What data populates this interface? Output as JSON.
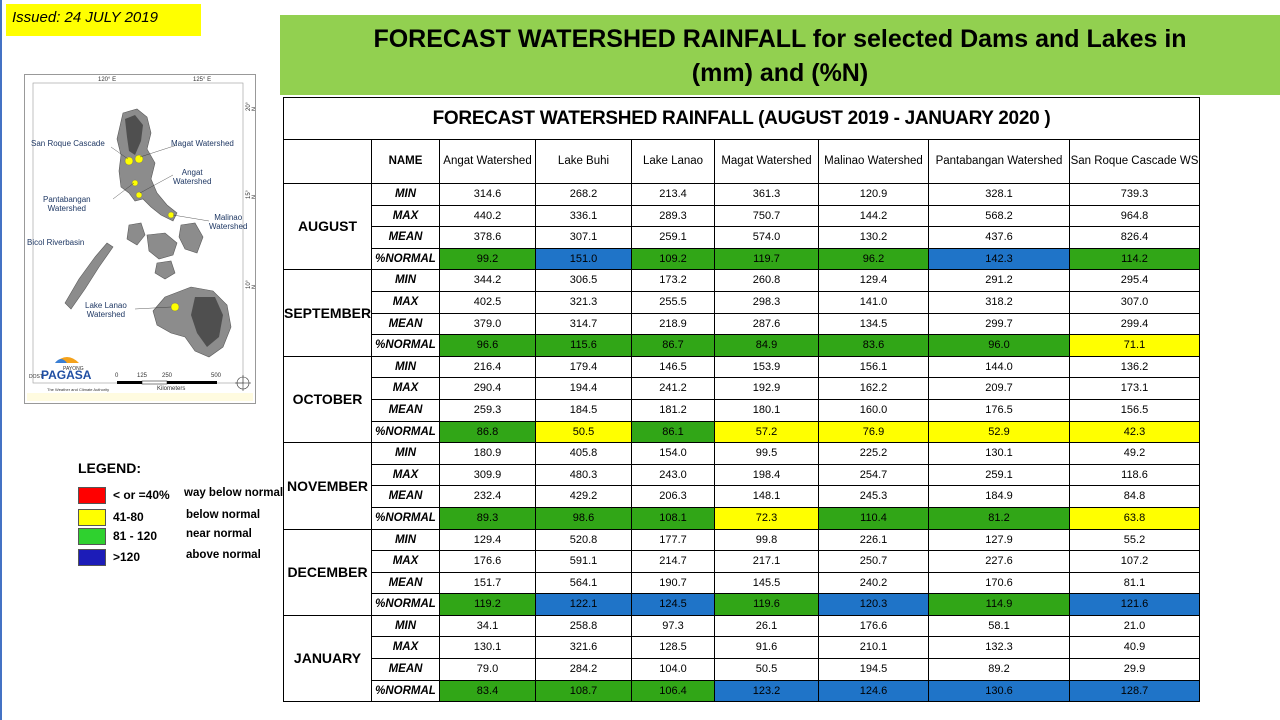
{
  "issued": "Issued: 24 JULY 2019",
  "banner": {
    "line1": "FORECAST WATERSHED RAINFALL   for selected Dams and Lakes in",
    "line2": "(mm) and (%N)"
  },
  "map": {
    "coords_top": [
      "120° E",
      "125° E"
    ],
    "coords_right": [
      "20° N",
      "15° N",
      "10° N"
    ],
    "labels": {
      "san_roque": "San Roque Cascade",
      "magat": "Magat Watershed",
      "angat": "Angat\nWatershed",
      "pantabangan": "Pantabangan\nWatershed",
      "malinao": "Malinao\nWatershed",
      "bicol": "Bicol Riverbasin",
      "lanao": "Lake Lanao\nWatershed"
    },
    "logo_small": "DOST",
    "logo_payong": "PAYONG",
    "logo_text": "PAGASA",
    "logo_tagline": "The Weather and Climate Authority",
    "scale": [
      "0",
      "125",
      "250",
      "500"
    ],
    "scale_unit": "Kilometers"
  },
  "legend": {
    "title": "LEGEND:",
    "items": [
      {
        "range": "< or =40%",
        "label": "way below normal",
        "color": "#ff0000"
      },
      {
        "range": "41-80",
        "label": "below normal",
        "color": "#ffff00"
      },
      {
        "range": "81 - 120",
        "label": "near normal",
        "color": "#2fd12f"
      },
      {
        "range": ">120",
        "label": "above normal",
        "color": "#1c1cb8"
      }
    ]
  },
  "table": {
    "title": "FORECAST WATERSHED RAINFALL (AUGUST 2019 - JANUARY 2020 )",
    "name_header": "NAME",
    "columns": [
      "Angat Watershed",
      "Lake Buhi",
      "Lake Lanao",
      "Magat Watershed",
      "Malinao Watershed",
      "Pantabangan Watershed",
      "San Roque Cascade WS"
    ],
    "stat_labels": [
      "MIN",
      "MAX",
      "MEAN",
      "%NORMAL"
    ],
    "months": [
      {
        "name": "AUGUST",
        "min": [
          "314.6",
          "268.2",
          "213.4",
          "361.3",
          "120.9",
          "328.1",
          "739.3"
        ],
        "max": [
          "440.2",
          "336.1",
          "289.3",
          "750.7",
          "144.2",
          "568.2",
          "964.8"
        ],
        "mean": [
          "378.6",
          "307.1",
          "259.1",
          "574.0",
          "130.2",
          "437.6",
          "826.4"
        ],
        "normal": [
          "99.2",
          "151.0",
          "109.2",
          "119.7",
          "96.2",
          "142.3",
          "114.2"
        ]
      },
      {
        "name": "SEPTEMBER",
        "min": [
          "344.2",
          "306.5",
          "173.2",
          "260.8",
          "129.4",
          "291.2",
          "295.4"
        ],
        "max": [
          "402.5",
          "321.3",
          "255.5",
          "298.3",
          "141.0",
          "318.2",
          "307.0"
        ],
        "mean": [
          "379.0",
          "314.7",
          "218.9",
          "287.6",
          "134.5",
          "299.7",
          "299.4"
        ],
        "normal": [
          "96.6",
          "115.6",
          "86.7",
          "84.9",
          "83.6",
          "96.0",
          "71.1"
        ]
      },
      {
        "name": "OCTOBER",
        "min": [
          "216.4",
          "179.4",
          "146.5",
          "153.9",
          "156.1",
          "144.0",
          "136.2"
        ],
        "max": [
          "290.4",
          "194.4",
          "241.2",
          "192.9",
          "162.2",
          "209.7",
          "173.1"
        ],
        "mean": [
          "259.3",
          "184.5",
          "181.2",
          "180.1",
          "160.0",
          "176.5",
          "156.5"
        ],
        "normal": [
          "86.8",
          "50.5",
          "86.1",
          "57.2",
          "76.9",
          "52.9",
          "42.3"
        ]
      },
      {
        "name": "NOVEMBER",
        "min": [
          "180.9",
          "405.8",
          "154.0",
          "99.5",
          "225.2",
          "130.1",
          "49.2"
        ],
        "max": [
          "309.9",
          "480.3",
          "243.0",
          "198.4",
          "254.7",
          "259.1",
          "118.6"
        ],
        "mean": [
          "232.4",
          "429.2",
          "206.3",
          "148.1",
          "245.3",
          "184.9",
          "84.8"
        ],
        "normal": [
          "89.3",
          "98.6",
          "108.1",
          "72.3",
          "110.4",
          "81.2",
          "63.8"
        ]
      },
      {
        "name": "DECEMBER",
        "min": [
          "129.4",
          "520.8",
          "177.7",
          "99.8",
          "226.1",
          "127.9",
          "55.2"
        ],
        "max": [
          "176.6",
          "591.1",
          "214.7",
          "217.1",
          "250.7",
          "227.6",
          "107.2"
        ],
        "mean": [
          "151.7",
          "564.1",
          "190.7",
          "145.5",
          "240.2",
          "170.6",
          "81.1"
        ],
        "normal": [
          "119.2",
          "122.1",
          "124.5",
          "119.6",
          "120.3",
          "114.9",
          "121.6"
        ]
      },
      {
        "name": "JANUARY",
        "min": [
          "34.1",
          "258.8",
          "97.3",
          "26.1",
          "176.6",
          "58.1",
          "21.0"
        ],
        "max": [
          "130.1",
          "321.6",
          "128.5",
          "91.6",
          "210.1",
          "132.3",
          "40.9"
        ],
        "mean": [
          "79.0",
          "284.2",
          "104.0",
          "50.5",
          "194.5",
          "89.2",
          "29.9"
        ],
        "normal": [
          "83.4",
          "108.7",
          "106.4",
          "123.2",
          "124.6",
          "130.6",
          "128.7"
        ]
      }
    ],
    "category_colors": {
      "way_below": "#ff0000",
      "below": "#ffff00",
      "near": "#31a617",
      "above": "#1f74c8"
    }
  }
}
